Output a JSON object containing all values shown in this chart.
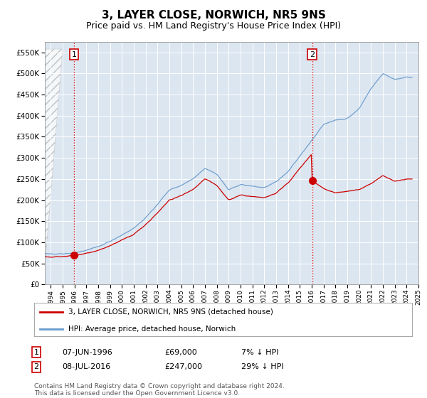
{
  "title": "3, LAYER CLOSE, NORWICH, NR5 9NS",
  "subtitle": "Price paid vs. HM Land Registry's House Price Index (HPI)",
  "title_fontsize": 11,
  "subtitle_fontsize": 9,
  "ylim": [
    0,
    575000
  ],
  "yticks": [
    0,
    50000,
    100000,
    150000,
    200000,
    250000,
    300000,
    350000,
    400000,
    450000,
    500000,
    550000
  ],
  "xlim_start": 1994.0,
  "xlim_end": 2025.5,
  "background_color": "#ffffff",
  "plot_bg_color": "#dce6f1",
  "grid_color": "#ffffff",
  "sale1_year": 1996,
  "sale1_month": 6,
  "sale1_price": 69000,
  "sale1_label": "1",
  "sale2_year": 2016,
  "sale2_month": 7,
  "sale2_price": 247000,
  "sale2_label": "2",
  "hpi_color": "#6699cc",
  "price_color": "#cc0000",
  "vline_color": "#cc0000",
  "legend_label_price": "3, LAYER CLOSE, NORWICH, NR5 9NS (detached house)",
  "legend_label_hpi": "HPI: Average price, detached house, Norwich",
  "table_row1": [
    "1",
    "07-JUN-1996",
    "£69,000",
    "7% ↓ HPI"
  ],
  "table_row2": [
    "2",
    "08-JUL-2016",
    "£247,000",
    "29% ↓ HPI"
  ],
  "footnote": "Contains HM Land Registry data © Crown copyright and database right 2024.\nThis data is licensed under the Open Government Licence v3.0."
}
